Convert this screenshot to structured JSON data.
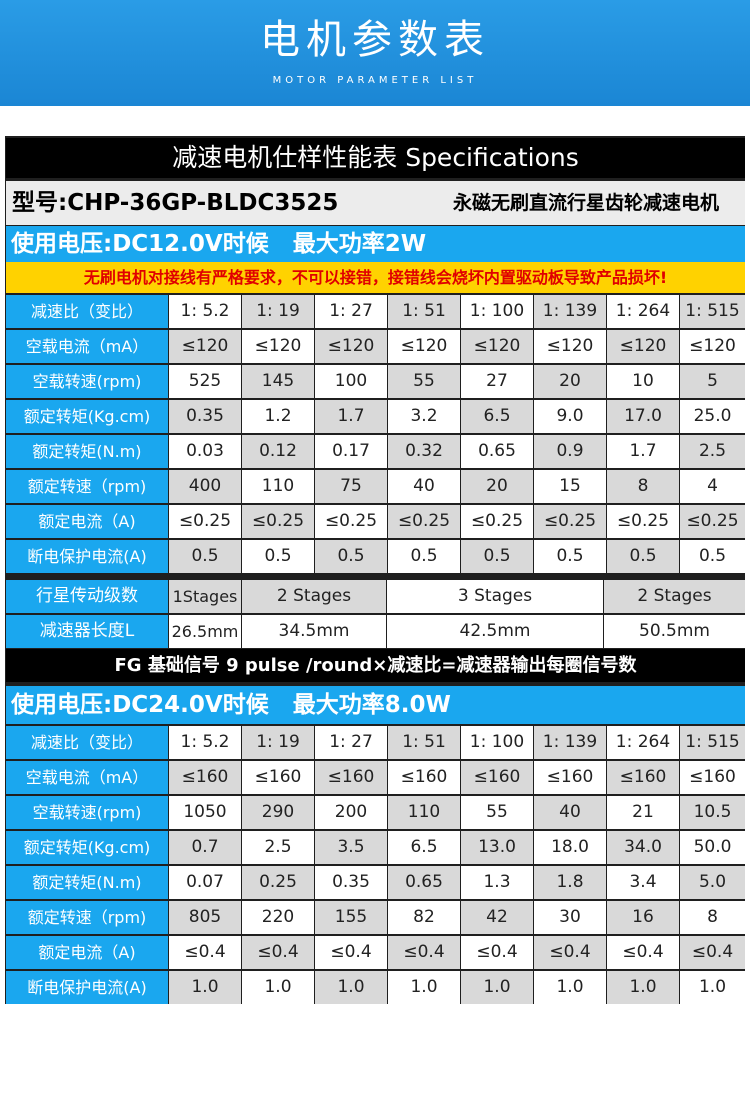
{
  "header": {
    "title": "电机参数表",
    "subtitle": "MOTOR PARAMETER LIST"
  },
  "spec_title": "减速电机仕样性能表 Specifications",
  "model": {
    "main": "型号:CHP-36GP-BLDC3525",
    "desc": "永磁无刷直流行星齿轮减速电机"
  },
  "warning": "无刷电机对接线有严格要求，不可以接错，接错线会烧坏内置驱动板导致产品损坏!",
  "fg_note": "FG 基础信号 9 pulse /round×减速比=减速器输出每圈信号数",
  "section_12v": {
    "voltage": "使用电压:DC12.0V时候",
    "power": "最大功率2W",
    "rows": [
      {
        "label": "减速比（变比）",
        "values": [
          "1: 5.2",
          "1: 19",
          "1: 27",
          "1: 51",
          "1: 100",
          "1: 139",
          "1: 264",
          "1: 515"
        ]
      },
      {
        "label": "空载电流（mA）",
        "values": [
          "≤120",
          "≤120",
          "≤120",
          "≤120",
          "≤120",
          "≤120",
          "≤120",
          "≤120"
        ]
      },
      {
        "label": "空载转速(rpm)",
        "values": [
          "525",
          "145",
          "100",
          "55",
          "27",
          "20",
          "10",
          "5"
        ]
      },
      {
        "label": "额定转矩(Kg.cm)",
        "values": [
          "0.35",
          "1.2",
          "1.7",
          "3.2",
          "6.5",
          "9.0",
          "17.0",
          "25.0"
        ]
      },
      {
        "label": "额定转矩(N.m)",
        "values": [
          "0.03",
          "0.12",
          "0.17",
          "0.32",
          "0.65",
          "0.9",
          "1.7",
          "2.5"
        ]
      },
      {
        "label": "额定转速（rpm)",
        "values": [
          "400",
          "110",
          "75",
          "40",
          "20",
          "15",
          "8",
          "4"
        ]
      },
      {
        "label": "额定电流（A)",
        "values": [
          "≤0.25",
          "≤0.25",
          "≤0.25",
          "≤0.25",
          "≤0.25",
          "≤0.25",
          "≤0.25",
          "≤0.25"
        ]
      },
      {
        "label": "断电保护电流(A)",
        "values": [
          "0.5",
          "0.5",
          "0.5",
          "0.5",
          "0.5",
          "0.5",
          "0.5",
          "0.5"
        ]
      }
    ]
  },
  "stages": {
    "label": "行星传动级数",
    "values": [
      "1Stages",
      "2 Stages",
      "3 Stages",
      "2 Stages"
    ]
  },
  "length": {
    "label": "减速器长度L",
    "values": [
      "26.5mm",
      "34.5mm",
      "42.5mm",
      "50.5mm"
    ]
  },
  "section_24v": {
    "voltage": "使用电压:DC24.0V时候",
    "power": "最大功率8.0W",
    "rows": [
      {
        "label": "减速比（变比）",
        "values": [
          "1: 5.2",
          "1: 19",
          "1: 27",
          "1: 51",
          "1: 100",
          "1: 139",
          "1: 264",
          "1: 515"
        ]
      },
      {
        "label": "空载电流（mA）",
        "values": [
          "≤160",
          "≤160",
          "≤160",
          "≤160",
          "≤160",
          "≤160",
          "≤160",
          "≤160"
        ]
      },
      {
        "label": "空载转速(rpm)",
        "values": [
          "1050",
          "290",
          "200",
          "110",
          "55",
          "40",
          "21",
          "10.5"
        ]
      },
      {
        "label": "额定转矩(Kg.cm)",
        "values": [
          "0.7",
          "2.5",
          "3.5",
          "6.5",
          "13.0",
          "18.0",
          "34.0",
          "50.0"
        ]
      },
      {
        "label": "额定转矩(N.m)",
        "values": [
          "0.07",
          "0.25",
          "0.35",
          "0.65",
          "1.3",
          "1.8",
          "3.4",
          "5.0"
        ]
      },
      {
        "label": "额定转速（rpm)",
        "values": [
          "805",
          "220",
          "155",
          "82",
          "42",
          "30",
          "16",
          "8"
        ]
      },
      {
        "label": "额定电流（A)",
        "values": [
          "≤0.4",
          "≤0.4",
          "≤0.4",
          "≤0.4",
          "≤0.4",
          "≤0.4",
          "≤0.4",
          "≤0.4"
        ]
      },
      {
        "label": "断电保护电流(A)",
        "values": [
          "1.0",
          "1.0",
          "1.0",
          "1.0",
          "1.0",
          "1.0",
          "1.0",
          "1.0"
        ]
      }
    ]
  }
}
